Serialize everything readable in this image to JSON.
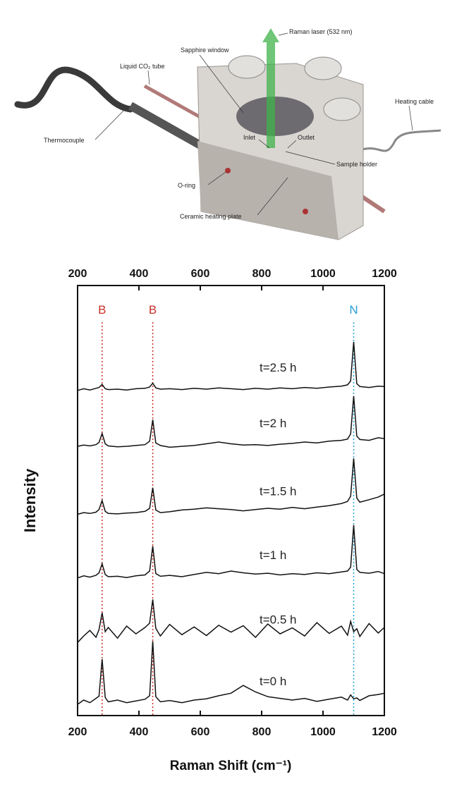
{
  "diagram": {
    "labels": [
      "Raman laser (532 nm)",
      "Sapphire window",
      "Liquid CO₂ tube",
      "Heating cable",
      "Thermocouple",
      "Outlet",
      "Inlet",
      "Sample holder",
      "O-ring",
      "Ceramic heating plate"
    ]
  },
  "chart_data": {
    "type": "line",
    "x_label": "Raman Shift (cm⁻¹)",
    "y_label": "Intensity",
    "xlim": [
      200,
      1200
    ],
    "xticks": [
      200,
      400,
      600,
      800,
      1000,
      1200
    ],
    "ylim": [
      0,
      100
    ],
    "reference_lines": [
      {
        "x": 280,
        "label": "B",
        "color": "#c8302a"
      },
      {
        "x": 445,
        "label": "B",
        "color": "#c8302a"
      },
      {
        "x": 1100,
        "label": "N",
        "color": "#2a9fd8"
      }
    ],
    "x": [
      200,
      220,
      240,
      260,
      270,
      280,
      290,
      300,
      330,
      360,
      390,
      420,
      435,
      445,
      455,
      470,
      500,
      540,
      580,
      620,
      660,
      700,
      740,
      780,
      820,
      860,
      900,
      940,
      980,
      1020,
      1060,
      1080,
      1090,
      1100,
      1110,
      1120,
      1150,
      1180,
      1200
    ],
    "series": [
      {
        "name": "t=2.5 h",
        "color": "#111111",
        "values": [
          75.6,
          76.0,
          75.7,
          76.1,
          76.3,
          77.0,
          76.0,
          75.8,
          75.9,
          75.7,
          76.0,
          76.1,
          76.4,
          77.3,
          76.2,
          75.9,
          76.0,
          75.8,
          76.1,
          75.9,
          76.2,
          76.0,
          75.8,
          76.1,
          75.9,
          76.2,
          76.0,
          76.3,
          76.1,
          76.4,
          76.6,
          76.9,
          77.8,
          86.9,
          77.2,
          76.5,
          76.3,
          76.6,
          76.5
        ]
      },
      {
        "name": "t=2 h",
        "color": "#111111",
        "values": [
          62.6,
          62.9,
          62.7,
          63.0,
          63.5,
          65.6,
          63.2,
          62.7,
          62.5,
          62.6,
          62.8,
          63.0,
          63.8,
          68.8,
          63.4,
          62.8,
          62.4,
          62.6,
          62.8,
          63.2,
          63.6,
          63.2,
          62.9,
          63.0,
          62.8,
          63.1,
          63.3,
          63.6,
          63.4,
          63.8,
          64.0,
          64.3,
          65.5,
          74.3,
          65.0,
          64.2,
          64.0,
          64.6,
          64.4
        ]
      },
      {
        "name": "t=1.5 h",
        "color": "#111111",
        "values": [
          46.8,
          47.2,
          47.0,
          47.3,
          47.9,
          50.0,
          47.5,
          47.0,
          46.9,
          47.1,
          47.2,
          47.5,
          48.2,
          53.0,
          47.8,
          47.2,
          47.4,
          47.8,
          48.0,
          48.3,
          48.1,
          47.9,
          47.6,
          47.9,
          48.2,
          48.0,
          48.4,
          48.1,
          48.5,
          48.8,
          49.3,
          49.8,
          51.0,
          59.8,
          50.6,
          49.6,
          50.2,
          50.8,
          51.5
        ]
      },
      {
        "name": "t=1 h",
        "color": "#111111",
        "values": [
          32.0,
          32.5,
          32.2,
          32.6,
          33.2,
          35.3,
          32.8,
          32.3,
          32.4,
          32.1,
          32.5,
          32.7,
          33.6,
          39.4,
          33.0,
          32.4,
          32.6,
          32.3,
          32.8,
          33.3,
          33.0,
          33.6,
          33.2,
          32.9,
          33.1,
          32.7,
          33.0,
          32.8,
          33.2,
          33.0,
          33.4,
          33.6,
          34.5,
          44.3,
          34.0,
          33.3,
          33.1,
          33.5,
          33.0
        ]
      },
      {
        "name": "t=0.5 h",
        "color": "#111111",
        "values": [
          17.0,
          18.5,
          19.8,
          18.2,
          20.0,
          23.9,
          19.5,
          20.5,
          18.0,
          20.8,
          19.0,
          20.5,
          21.5,
          27.0,
          20.3,
          18.5,
          21.2,
          18.8,
          20.6,
          18.6,
          21.0,
          19.4,
          20.9,
          18.2,
          21.3,
          19.0,
          20.4,
          18.5,
          21.6,
          19.1,
          20.8,
          18.7,
          21.9,
          19.5,
          20.2,
          18.4,
          21.4,
          19.2,
          20.5
        ]
      },
      {
        "name": "t=0 h",
        "color": "#111111",
        "values": [
          2.6,
          3.6,
          3.0,
          4.0,
          4.5,
          13.1,
          4.2,
          3.2,
          3.6,
          3.0,
          3.4,
          3.8,
          4.6,
          17.3,
          4.4,
          3.2,
          3.5,
          3.0,
          3.6,
          3.9,
          4.6,
          5.2,
          7.0,
          5.5,
          4.4,
          4.0,
          3.6,
          4.0,
          3.3,
          3.8,
          4.3,
          3.6,
          4.8,
          3.9,
          4.1,
          3.5,
          4.6,
          4.9,
          5.2
        ]
      }
    ]
  }
}
